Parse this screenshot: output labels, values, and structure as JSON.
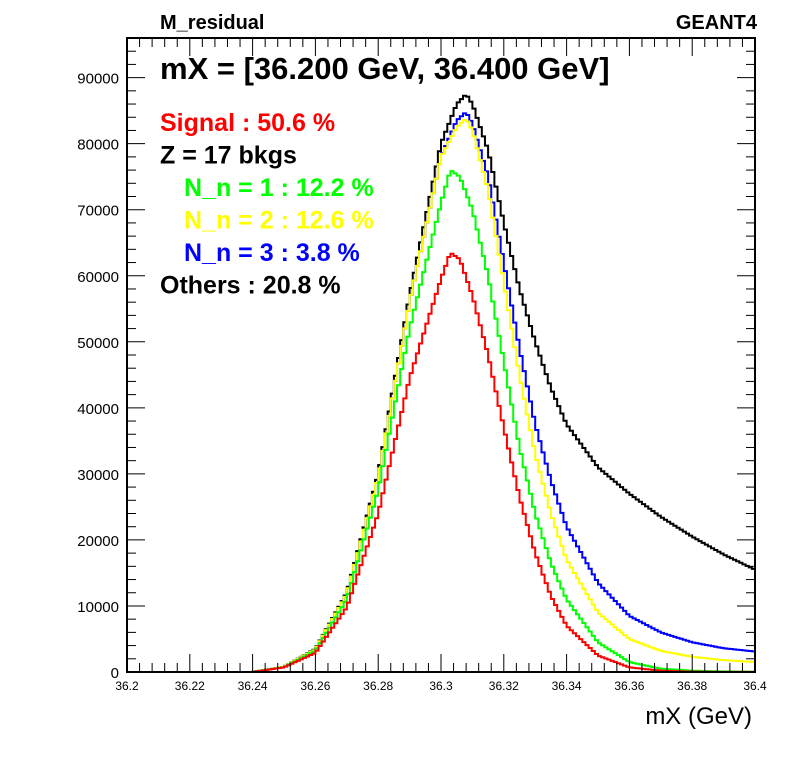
{
  "chart_data": {
    "type": "line",
    "header_left": "M_residual",
    "header_right": "GEANT4",
    "title": "mX = [36.200 GeV, 36.400 GeV]",
    "xlabel": "mX (GeV)",
    "ylabel": "",
    "xlim": [
      36.2,
      36.4
    ],
    "ylim": [
      0,
      96000
    ],
    "x_ticks": [
      "36.2",
      "36.22",
      "36.24",
      "36.26",
      "36.28",
      "36.3",
      "36.32",
      "36.34",
      "36.36",
      "36.38",
      "36.4"
    ],
    "y_ticks": [
      "0",
      "10000",
      "20000",
      "30000",
      "40000",
      "50000",
      "60000",
      "70000",
      "80000",
      "90000"
    ],
    "grid": false,
    "legend": [
      {
        "text": "Signal : 50.6 %",
        "color": "#ff0000",
        "indent": false
      },
      {
        "text": "Z = 17 bkgs",
        "color": "#000000",
        "indent": false
      },
      {
        "text": "N_n = 1 : 12.2 %",
        "color": "#00ff00",
        "indent": true
      },
      {
        "text": "N_n = 2 : 12.6 %",
        "color": "#ffff00",
        "indent": true
      },
      {
        "text": "N_n = 3 : 3.8 %",
        "color": "#0000ff",
        "indent": true
      },
      {
        "text": "Others : 20.8 %",
        "color": "#000000",
        "indent": false
      }
    ],
    "series": [
      {
        "color": "#000000",
        "points": [
          [
            36.2,
            0
          ],
          [
            36.24,
            0
          ],
          [
            36.25,
            800
          ],
          [
            36.26,
            3500
          ],
          [
            36.27,
            12000
          ],
          [
            36.28,
            30000
          ],
          [
            36.29,
            57000
          ],
          [
            36.3,
            80000
          ],
          [
            36.305,
            86000
          ],
          [
            36.308,
            87500
          ],
          [
            36.31,
            86000
          ],
          [
            36.315,
            79000
          ],
          [
            36.32,
            68000
          ],
          [
            36.325,
            58000
          ],
          [
            36.33,
            50000
          ],
          [
            36.335,
            43000
          ],
          [
            36.34,
            37500
          ],
          [
            36.35,
            31000
          ],
          [
            36.36,
            27000
          ],
          [
            36.37,
            23500
          ],
          [
            36.38,
            20500
          ],
          [
            36.39,
            17800
          ],
          [
            36.4,
            15500
          ]
        ]
      },
      {
        "color": "#0000ff",
        "points": [
          [
            36.2,
            0
          ],
          [
            36.24,
            0
          ],
          [
            36.25,
            800
          ],
          [
            36.26,
            3400
          ],
          [
            36.27,
            11800
          ],
          [
            36.28,
            29500
          ],
          [
            36.29,
            56000
          ],
          [
            36.3,
            78000
          ],
          [
            36.305,
            83500
          ],
          [
            36.308,
            84800
          ],
          [
            36.31,
            83000
          ],
          [
            36.315,
            75000
          ],
          [
            36.32,
            62000
          ],
          [
            36.325,
            49000
          ],
          [
            36.33,
            37500
          ],
          [
            36.335,
            29000
          ],
          [
            36.34,
            22000
          ],
          [
            36.35,
            13500
          ],
          [
            36.36,
            8500
          ],
          [
            36.37,
            6000
          ],
          [
            36.38,
            4500
          ],
          [
            36.39,
            3600
          ],
          [
            36.4,
            3100
          ]
        ]
      },
      {
        "color": "#ffff00",
        "points": [
          [
            36.2,
            0
          ],
          [
            36.24,
            0
          ],
          [
            36.25,
            800
          ],
          [
            36.26,
            3400
          ],
          [
            36.27,
            11800
          ],
          [
            36.28,
            29500
          ],
          [
            36.29,
            56000
          ],
          [
            36.3,
            78000
          ],
          [
            36.305,
            82500
          ],
          [
            36.308,
            83800
          ],
          [
            36.31,
            82000
          ],
          [
            36.315,
            73000
          ],
          [
            36.32,
            59000
          ],
          [
            36.325,
            45000
          ],
          [
            36.33,
            33000
          ],
          [
            36.335,
            24000
          ],
          [
            36.34,
            17000
          ],
          [
            36.35,
            9000
          ],
          [
            36.36,
            5000
          ],
          [
            36.37,
            3200
          ],
          [
            36.38,
            2300
          ],
          [
            36.39,
            1800
          ],
          [
            36.4,
            1500
          ]
        ]
      },
      {
        "color": "#00ff00",
        "points": [
          [
            36.2,
            0
          ],
          [
            36.24,
            0
          ],
          [
            36.25,
            750
          ],
          [
            36.26,
            3200
          ],
          [
            36.27,
            11000
          ],
          [
            36.28,
            27500
          ],
          [
            36.29,
            52000
          ],
          [
            36.3,
            71000
          ],
          [
            36.303,
            76000
          ],
          [
            36.306,
            75000
          ],
          [
            36.31,
            70000
          ],
          [
            36.315,
            60000
          ],
          [
            36.32,
            47000
          ],
          [
            36.325,
            34000
          ],
          [
            36.33,
            24000
          ],
          [
            36.335,
            16500
          ],
          [
            36.34,
            11000
          ],
          [
            36.35,
            4500
          ],
          [
            36.36,
            1500
          ],
          [
            36.37,
            500
          ],
          [
            36.38,
            200
          ],
          [
            36.39,
            80
          ],
          [
            36.4,
            40
          ]
        ]
      },
      {
        "color": "#ff0000",
        "points": [
          [
            36.2,
            0
          ],
          [
            36.24,
            0
          ],
          [
            36.25,
            700
          ],
          [
            36.26,
            2900
          ],
          [
            36.27,
            9800
          ],
          [
            36.28,
            24000
          ],
          [
            36.29,
            44500
          ],
          [
            36.3,
            59500
          ],
          [
            36.303,
            63500
          ],
          [
            36.306,
            62500
          ],
          [
            36.31,
            57000
          ],
          [
            36.315,
            48000
          ],
          [
            36.32,
            37000
          ],
          [
            36.325,
            26500
          ],
          [
            36.33,
            18000
          ],
          [
            36.335,
            11500
          ],
          [
            36.34,
            7000
          ],
          [
            36.35,
            2500
          ],
          [
            36.36,
            700
          ],
          [
            36.37,
            200
          ],
          [
            36.38,
            60
          ],
          [
            36.39,
            20
          ],
          [
            36.4,
            10
          ]
        ]
      }
    ]
  }
}
